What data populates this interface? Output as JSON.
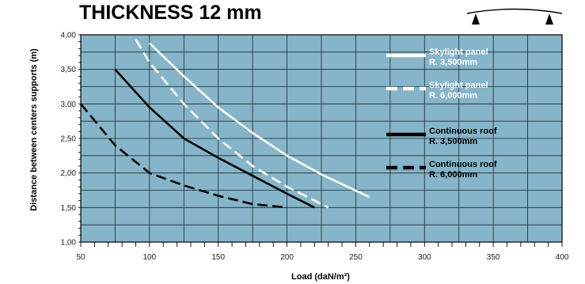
{
  "chart_data": {
    "type": "line",
    "title": "THICKNESS 12 mm",
    "xlabel": "Load (daN/m²)",
    "ylabel": "Distance between centers supports (m)",
    "xlim": [
      50,
      400
    ],
    "ylim": [
      1.0,
      4.0
    ],
    "x_ticks": [
      50,
      100,
      150,
      200,
      250,
      300,
      350,
      400
    ],
    "x_tick_labels": [
      "50",
      "100",
      "150",
      "200",
      "250",
      "300",
      "350",
      "400"
    ],
    "y_ticks": [
      1.0,
      1.5,
      2.0,
      2.5,
      3.0,
      3.5,
      4.0
    ],
    "y_tick_labels": [
      "1,00",
      "1,50",
      "2,00",
      "2,50",
      "3,00",
      "3,50",
      "4,00"
    ],
    "grid": true,
    "legend_position": "right",
    "background_color": "#86b4c8",
    "series": [
      {
        "name": "Skylight panel R. 3,500mm",
        "color": "#ffffff",
        "dash": "solid",
        "points": [
          [
            100,
            3.88
          ],
          [
            125,
            3.4
          ],
          [
            150,
            2.95
          ],
          [
            175,
            2.58
          ],
          [
            200,
            2.25
          ],
          [
            225,
            1.98
          ],
          [
            260,
            1.65
          ]
        ]
      },
      {
        "name": "Skylight panel R. 6,000mm",
        "color": "#ffffff",
        "dash": "dashed",
        "points": [
          [
            90,
            3.93
          ],
          [
            100,
            3.6
          ],
          [
            125,
            3.0
          ],
          [
            150,
            2.5
          ],
          [
            175,
            2.1
          ],
          [
            200,
            1.8
          ],
          [
            230,
            1.5
          ]
        ]
      },
      {
        "name": "Continuous roof R. 3,500mm",
        "color": "#000000",
        "dash": "solid",
        "points": [
          [
            75,
            3.5
          ],
          [
            100,
            2.95
          ],
          [
            125,
            2.5
          ],
          [
            150,
            2.22
          ],
          [
            175,
            1.96
          ],
          [
            200,
            1.7
          ],
          [
            220,
            1.5
          ]
        ]
      },
      {
        "name": "Continuous roof R. 6,000mm",
        "color": "#000000",
        "dash": "dashed",
        "points": [
          [
            50,
            3.0
          ],
          [
            75,
            2.4
          ],
          [
            100,
            2.0
          ],
          [
            125,
            1.82
          ],
          [
            150,
            1.67
          ],
          [
            175,
            1.55
          ],
          [
            200,
            1.5
          ]
        ]
      }
    ],
    "legend": [
      {
        "line1": "Skylight panel",
        "line2": "R. 3,500mm",
        "text_color": "#ffffff"
      },
      {
        "line1": "Skylight panel",
        "line2": "R. 6,000mm",
        "text_color": "#ffffff"
      },
      {
        "line1": "Continuous roof",
        "line2": "R. 3,500mm",
        "text_color": "#000000"
      },
      {
        "line1": "Continuous roof",
        "line2": "R. 6,000mm",
        "text_color": "#000000"
      }
    ]
  }
}
